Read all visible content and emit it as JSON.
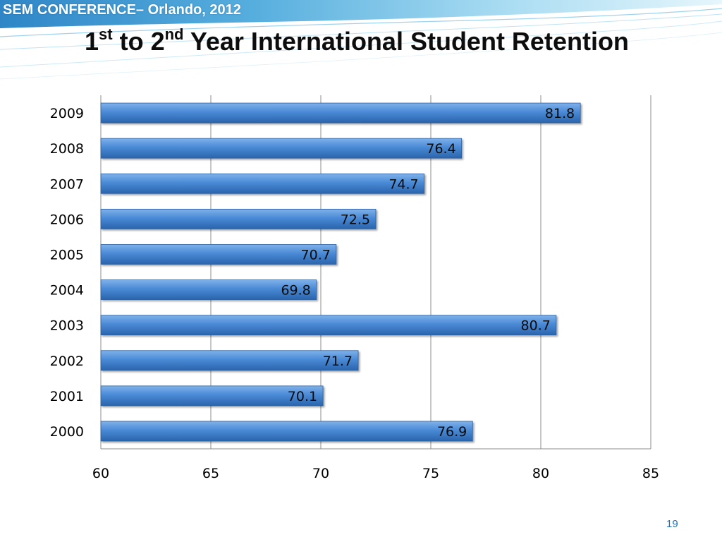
{
  "header": {
    "conference": "SEM CONFERENCE– Orlando, 2012",
    "title_parts": {
      "n1": "1",
      "sup1": "st",
      "mid": " to 2",
      "sup2": "nd",
      "rest": " Year International Student Retention"
    }
  },
  "page_number": "19",
  "colors": {
    "bar": "#4a8ad6",
    "bar_dark": "#2a64ad",
    "grid": "#8c8c8c",
    "accent": "#1f6fb4"
  },
  "chart_data": {
    "type": "bar",
    "orientation": "horizontal",
    "categories": [
      "2009",
      "2008",
      "2007",
      "2006",
      "2005",
      "2004",
      "2003",
      "2002",
      "2001",
      "2000"
    ],
    "values": [
      81.8,
      76.4,
      74.7,
      72.5,
      70.7,
      69.8,
      80.7,
      71.7,
      70.1,
      76.9
    ],
    "data_labels": [
      "81.8",
      "76.4",
      "74.7",
      "72.5",
      "70.7",
      "69.8",
      "80.7",
      "71.7",
      "70.1",
      "76.9"
    ],
    "x_ticks": [
      "60",
      "65",
      "70",
      "75",
      "80",
      "85"
    ],
    "xlim": [
      60,
      85
    ],
    "grid": true,
    "legend": "none"
  }
}
